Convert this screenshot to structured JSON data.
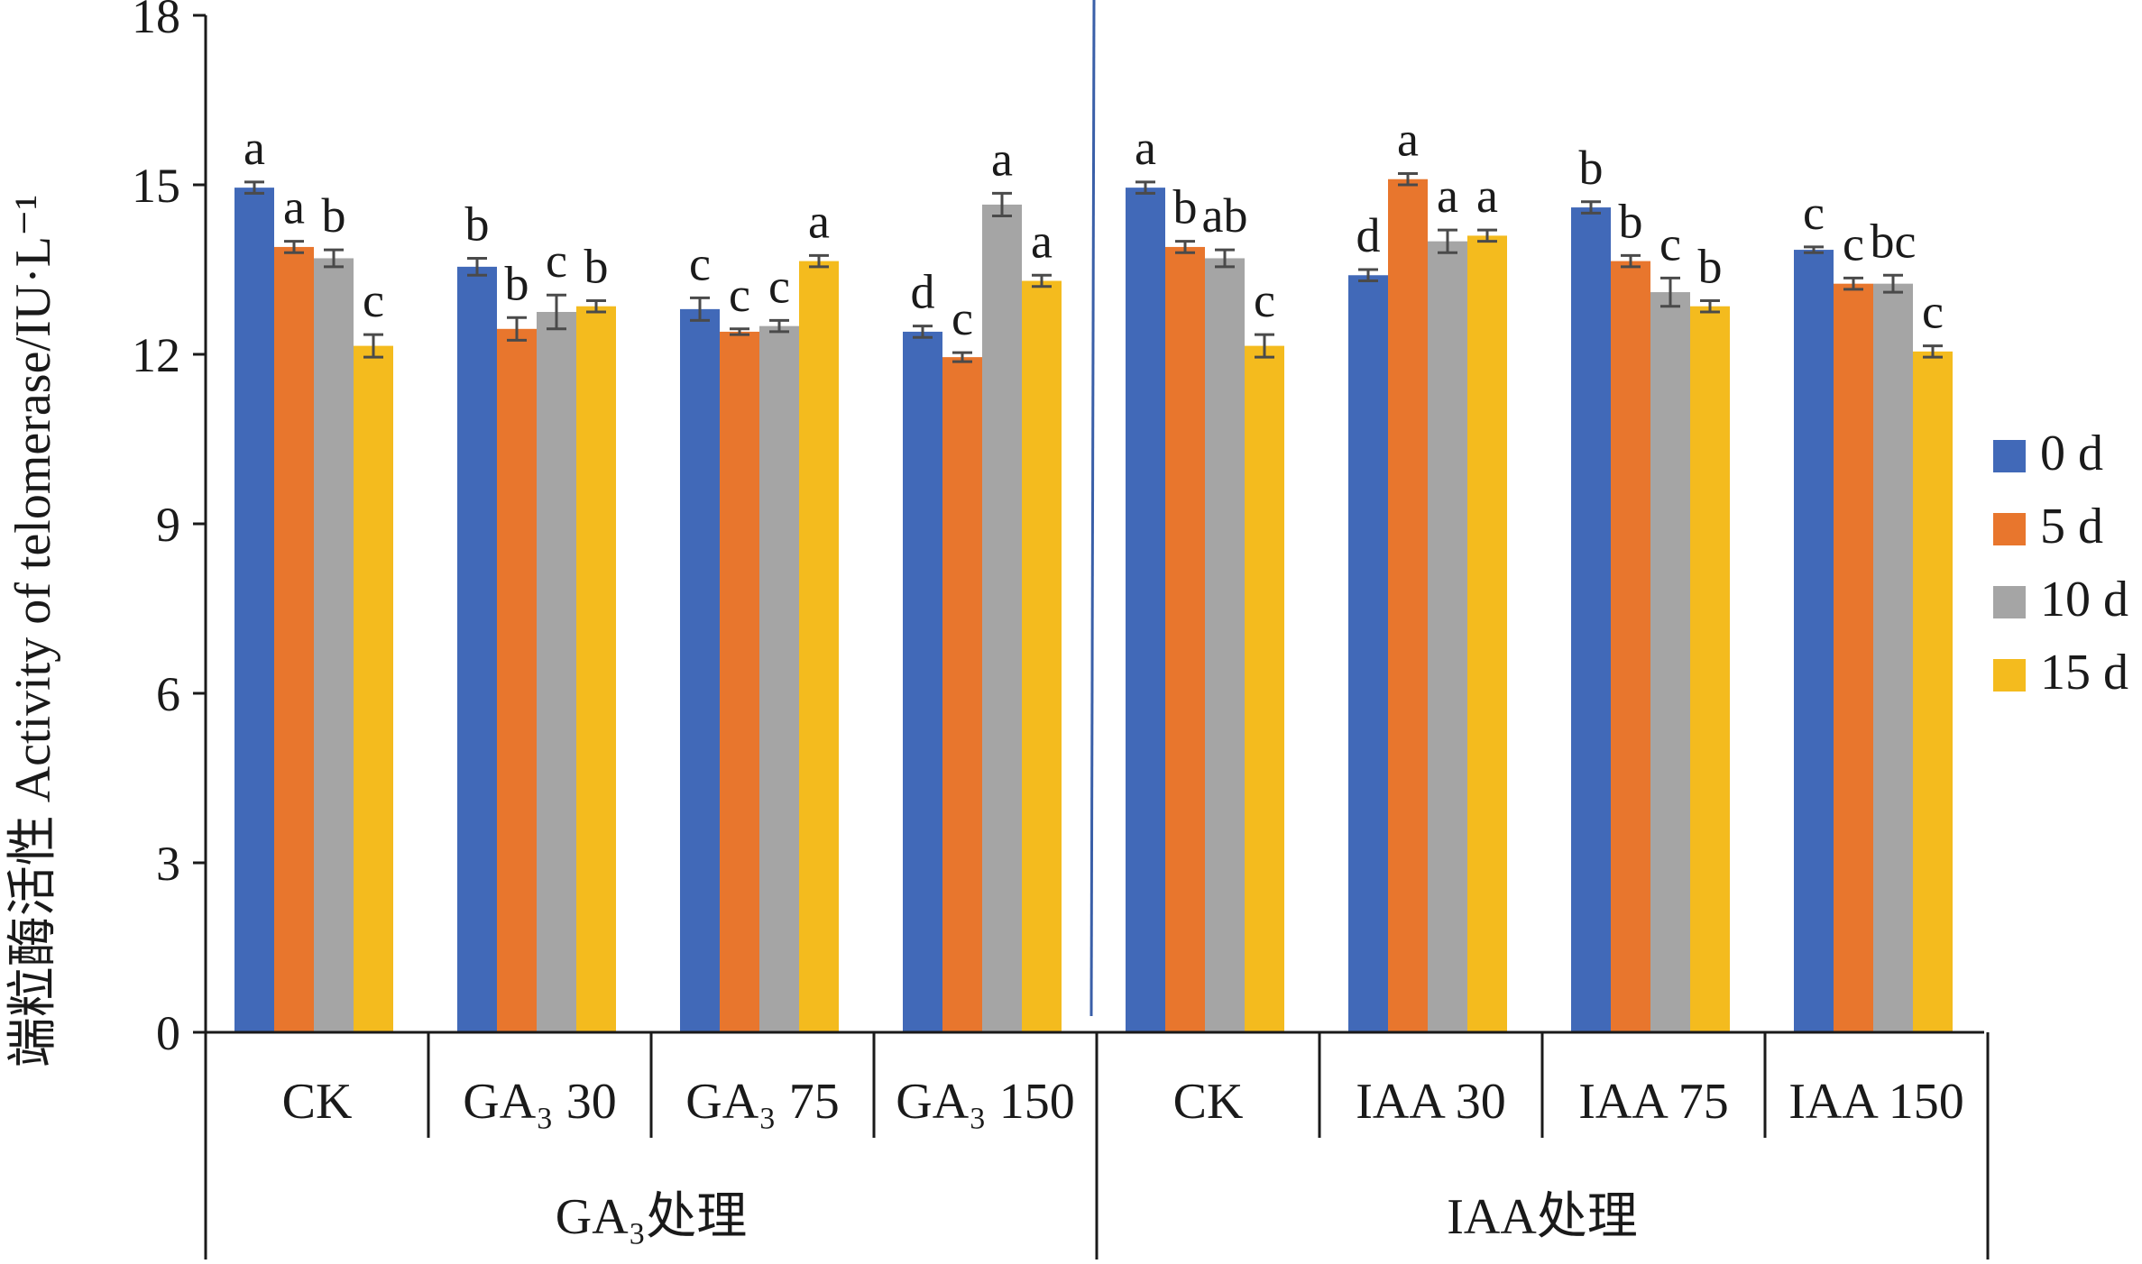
{
  "chart_data": {
    "type": "bar",
    "ylabel": "端粒酶活性 Activity of telomerase/IU·L⁻¹",
    "ylim": [
      0,
      18
    ],
    "yticks": [
      "0",
      "3",
      "6",
      "9",
      "12",
      "15",
      "18"
    ],
    "series": [
      {
        "name": "0 d",
        "color": "#4169b8",
        "values": [
          14.95,
          13.55,
          12.8,
          12.4,
          14.95,
          13.4,
          14.6,
          13.85
        ],
        "errors": [
          0.1,
          0.15,
          0.2,
          0.1,
          0.1,
          0.1,
          0.1,
          0.05
        ],
        "letters": [
          "a",
          "b",
          "c",
          "d",
          "a",
          "d",
          "b",
          "c"
        ]
      },
      {
        "name": "5 d",
        "color": "#e8762d",
        "values": [
          13.9,
          12.45,
          12.4,
          11.95,
          13.9,
          15.1,
          13.65,
          13.25
        ],
        "errors": [
          0.1,
          0.2,
          0.05,
          0.08,
          0.1,
          0.1,
          0.1,
          0.1
        ],
        "letters": [
          "a",
          "b",
          "c",
          "c",
          "b",
          "a",
          "b",
          "c"
        ]
      },
      {
        "name": "10 d",
        "color": "#a5a5a5",
        "values": [
          13.7,
          12.75,
          12.5,
          14.65,
          13.7,
          14.0,
          13.1,
          13.25
        ],
        "errors": [
          0.15,
          0.3,
          0.1,
          0.2,
          0.15,
          0.2,
          0.25,
          0.15
        ],
        "letters": [
          "b",
          "c",
          "c",
          "a",
          "ab",
          "a",
          "c",
          "bc"
        ]
      },
      {
        "name": "15 d",
        "color": "#f4bb1e",
        "values": [
          12.15,
          12.85,
          13.65,
          13.3,
          12.15,
          14.1,
          12.85,
          12.05
        ],
        "errors": [
          0.2,
          0.1,
          0.1,
          0.1,
          0.2,
          0.1,
          0.1,
          0.1
        ],
        "letters": [
          "c",
          "b",
          "a",
          "a",
          "c",
          "a",
          "b",
          "c"
        ]
      }
    ],
    "groups": [
      {
        "label": "GA₃处理",
        "categories": [
          {
            "label": "CK"
          },
          {
            "label": "GA₃ 30"
          },
          {
            "label": "GA₃ 75"
          },
          {
            "label": "GA₃ 150"
          }
        ]
      },
      {
        "label": "IAA处理",
        "categories": [
          {
            "label": "CK"
          },
          {
            "label": "IAA 30"
          },
          {
            "label": "IAA 75"
          },
          {
            "label": "IAA 150"
          }
        ]
      }
    ]
  }
}
